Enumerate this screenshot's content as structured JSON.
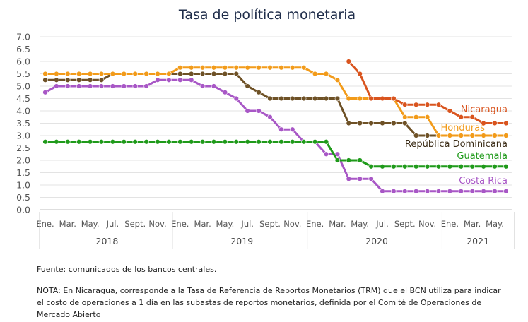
{
  "chart_data": {
    "type": "line",
    "title": "Tasa de política monetaria",
    "ylim": [
      0,
      7
    ],
    "yticks": [
      "0.0",
      "0.5",
      "1.0",
      "1.5",
      "2.0",
      "2.5",
      "3.0",
      "3.5",
      "4.0",
      "4.5",
      "5.0",
      "5.5",
      "6.0",
      "6.5",
      "7.0"
    ],
    "months_per_year_shown": 12,
    "month_tick_labels": [
      "Ene.",
      "Mar.",
      "May.",
      "Jul.",
      "Sept.",
      "Nov.",
      "Ene.",
      "Mar.",
      "May.",
      "Jul.",
      "Sept.",
      "Nov.",
      "Ene.",
      "Mar.",
      "May.",
      "Jul.",
      "Sept.",
      "Nov.",
      "Ene.",
      "Mar.",
      "May."
    ],
    "month_tick_index": [
      0,
      2,
      4,
      6,
      8,
      10,
      12,
      14,
      16,
      18,
      20,
      22,
      24,
      26,
      28,
      30,
      32,
      34,
      36,
      38,
      40
    ],
    "years": [
      {
        "label": "2018",
        "start": 0,
        "end": 12
      },
      {
        "label": "2019",
        "start": 12,
        "end": 24
      },
      {
        "label": "2020",
        "start": 24,
        "end": 36
      },
      {
        "label": "2021",
        "start": 36,
        "end": 42
      }
    ],
    "grid": true,
    "series": [
      {
        "name": "Nicaragua",
        "color": "#d9541e",
        "start": 27,
        "values": [
          6.0,
          5.5,
          4.5,
          4.5,
          4.5,
          4.25,
          4.25,
          4.25,
          4.25,
          4.0,
          3.75,
          3.75,
          3.5,
          3.5,
          3.5
        ]
      },
      {
        "name": "Honduras",
        "color": "#f29b1a",
        "start": 0,
        "values": [
          5.5,
          5.5,
          5.5,
          5.5,
          5.5,
          5.5,
          5.5,
          5.5,
          5.5,
          5.5,
          5.5,
          5.5,
          5.75,
          5.75,
          5.75,
          5.75,
          5.75,
          5.75,
          5.75,
          5.75,
          5.75,
          5.75,
          5.75,
          5.75,
          5.5,
          5.5,
          5.25,
          4.5,
          4.5,
          4.5,
          4.5,
          4.5,
          3.75,
          3.75,
          3.75,
          3.0,
          3.0,
          3.0,
          3.0,
          3.0,
          3.0,
          3.0
        ]
      },
      {
        "name": "República Dominicana",
        "color": "#6e5126",
        "start": 0,
        "values": [
          5.25,
          5.25,
          5.25,
          5.25,
          5.25,
          5.25,
          5.5,
          5.5,
          5.5,
          5.5,
          5.5,
          5.5,
          5.5,
          5.5,
          5.5,
          5.5,
          5.5,
          5.5,
          5.0,
          4.75,
          4.5,
          4.5,
          4.5,
          4.5,
          4.5,
          4.5,
          4.5,
          3.5,
          3.5,
          3.5,
          3.5,
          3.5,
          3.5,
          3.0,
          3.0,
          3.0,
          3.0,
          3.0,
          3.0,
          3.0,
          3.0,
          3.0
        ]
      },
      {
        "name": "Guatemala",
        "color": "#1f9a1a",
        "start": 0,
        "values": [
          2.75,
          2.75,
          2.75,
          2.75,
          2.75,
          2.75,
          2.75,
          2.75,
          2.75,
          2.75,
          2.75,
          2.75,
          2.75,
          2.75,
          2.75,
          2.75,
          2.75,
          2.75,
          2.75,
          2.75,
          2.75,
          2.75,
          2.75,
          2.75,
          2.75,
          2.75,
          2.0,
          2.0,
          2.0,
          1.75,
          1.75,
          1.75,
          1.75,
          1.75,
          1.75,
          1.75,
          1.75,
          1.75,
          1.75,
          1.75,
          1.75,
          1.75
        ]
      },
      {
        "name": "Costa Rica",
        "color": "#a857c6",
        "start": 0,
        "values": [
          4.75,
          5.0,
          5.0,
          5.0,
          5.0,
          5.0,
          5.0,
          5.0,
          5.0,
          5.0,
          5.25,
          5.25,
          5.25,
          5.25,
          5.0,
          5.0,
          4.75,
          4.5,
          4.0,
          4.0,
          3.75,
          3.25,
          3.25,
          2.75,
          2.75,
          2.25,
          2.25,
          1.25,
          1.25,
          1.25,
          0.75,
          0.75,
          0.75,
          0.75,
          0.75,
          0.75,
          0.75,
          0.75,
          0.75,
          0.75,
          0.75,
          0.75
        ]
      }
    ]
  },
  "notes": {
    "source": "Fuente: comunicados de los bancos centrales.",
    "note_line1": "NOTA: En Nicaragua, corresponde a la Tasa de Referencia de Reportos Monetarios (TRM) que el BCN utiliza para indicar",
    "note_line2": "el costo de operaciones a 1 día en las subastas de reportos monetarios, definida por el Comité de Operaciones de",
    "note_line3": "Mercado Abierto"
  }
}
